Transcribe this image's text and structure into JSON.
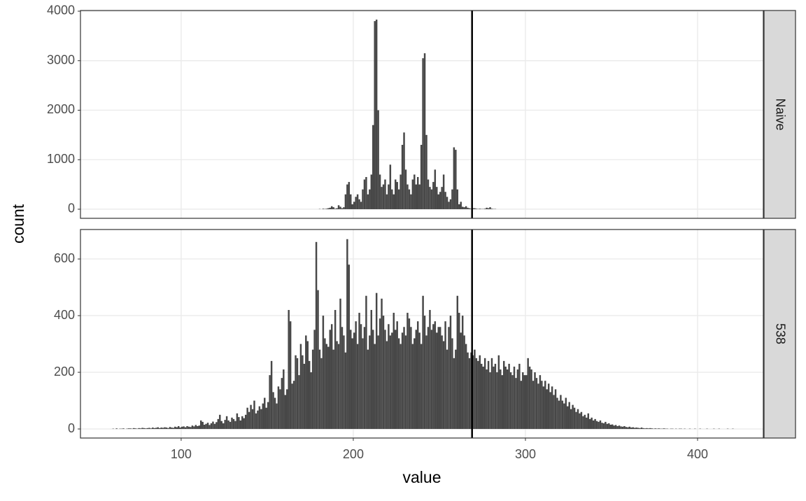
{
  "chart_data": [
    {
      "type": "histogram",
      "strip": "Naive",
      "y_label": "count",
      "color": "#474747",
      "grid": true,
      "vline": 269,
      "xlim": [
        41.5,
        438.2
      ],
      "xticks": [
        100,
        200,
        300,
        400
      ],
      "ylim": [
        -184,
        4014
      ],
      "yticks": [
        0,
        1000,
        2000,
        3000,
        4000
      ],
      "bins": [
        175,
        176,
        177,
        178,
        179,
        180,
        181,
        182,
        183,
        184,
        185,
        186,
        187,
        188,
        189,
        190,
        191,
        192,
        193,
        194,
        195,
        196,
        197,
        198,
        199,
        200,
        201,
        202,
        203,
        204,
        205,
        206,
        207,
        208,
        209,
        210,
        211,
        212,
        213,
        214,
        215,
        216,
        217,
        218,
        219,
        220,
        221,
        222,
        223,
        224,
        225,
        226,
        227,
        228,
        229,
        230,
        231,
        232,
        233,
        234,
        235,
        236,
        237,
        238,
        239,
        240,
        241,
        242,
        243,
        244,
        245,
        246,
        247,
        248,
        249,
        250,
        251,
        252,
        253,
        254,
        255,
        256,
        257,
        258,
        259,
        260,
        261,
        262,
        263,
        264,
        265,
        266,
        267,
        268,
        269,
        270,
        271,
        272,
        273,
        274,
        275,
        276,
        277,
        278,
        279,
        280,
        281,
        282,
        283,
        284,
        285,
        286,
        287,
        288,
        289,
        290
      ],
      "counts": [
        0,
        0,
        0,
        0,
        0,
        5,
        0,
        10,
        5,
        10,
        20,
        30,
        60,
        40,
        10,
        20,
        80,
        50,
        20,
        40,
        300,
        500,
        550,
        300,
        100,
        150,
        250,
        300,
        200,
        150,
        400,
        600,
        650,
        300,
        400,
        700,
        1700,
        3800,
        3830,
        2000,
        700,
        450,
        500,
        600,
        300,
        500,
        900,
        400,
        300,
        600,
        550,
        400,
        700,
        1300,
        1550,
        800,
        500,
        400,
        300,
        600,
        700,
        500,
        650,
        500,
        1300,
        3050,
        3150,
        1500,
        600,
        450,
        400,
        550,
        800,
        450,
        300,
        350,
        450,
        700,
        350,
        250,
        150,
        200,
        400,
        1250,
        1200,
        400,
        100,
        150,
        50,
        40,
        60,
        30,
        20,
        10,
        20,
        20,
        10,
        5,
        10,
        5,
        5,
        10,
        30,
        20,
        40,
        10,
        5,
        5,
        0,
        0,
        0,
        0,
        0,
        0,
        0
      ]
    },
    {
      "type": "histogram",
      "strip": "538",
      "x_label": "value",
      "color": "#474747",
      "grid": true,
      "vline": 269,
      "xlim": [
        41.5,
        438.2
      ],
      "xticks": [
        100,
        200,
        300,
        400
      ],
      "ylim": [
        -32,
        704
      ],
      "yticks": [
        0,
        200,
        400,
        600
      ],
      "bins": [
        60,
        61,
        62,
        63,
        64,
        65,
        66,
        67,
        68,
        69,
        70,
        71,
        72,
        73,
        74,
        75,
        76,
        77,
        78,
        79,
        80,
        81,
        82,
        83,
        84,
        85,
        86,
        87,
        88,
        89,
        90,
        91,
        92,
        93,
        94,
        95,
        96,
        97,
        98,
        99,
        100,
        101,
        102,
        103,
        104,
        105,
        106,
        107,
        108,
        109,
        110,
        111,
        112,
        113,
        114,
        115,
        116,
        117,
        118,
        119,
        120,
        121,
        122,
        123,
        124,
        125,
        126,
        127,
        128,
        129,
        130,
        131,
        132,
        133,
        134,
        135,
        136,
        137,
        138,
        139,
        140,
        141,
        142,
        143,
        144,
        145,
        146,
        147,
        148,
        149,
        150,
        151,
        152,
        153,
        154,
        155,
        156,
        157,
        158,
        159,
        160,
        161,
        162,
        163,
        164,
        165,
        166,
        167,
        168,
        169,
        170,
        171,
        172,
        173,
        174,
        175,
        176,
        177,
        178,
        179,
        180,
        181,
        182,
        183,
        184,
        185,
        186,
        187,
        188,
        189,
        190,
        191,
        192,
        193,
        194,
        195,
        196,
        197,
        198,
        199,
        200,
        201,
        202,
        203,
        204,
        205,
        206,
        207,
        208,
        209,
        210,
        211,
        212,
        213,
        214,
        215,
        216,
        217,
        218,
        219,
        220,
        221,
        222,
        223,
        224,
        225,
        226,
        227,
        228,
        229,
        230,
        231,
        232,
        233,
        234,
        235,
        236,
        237,
        238,
        239,
        240,
        241,
        242,
        243,
        244,
        245,
        246,
        247,
        248,
        249,
        250,
        251,
        252,
        253,
        254,
        255,
        256,
        257,
        258,
        259,
        260,
        261,
        262,
        263,
        264,
        265,
        266,
        267,
        268,
        269,
        270,
        271,
        272,
        273,
        274,
        275,
        276,
        277,
        278,
        279,
        280,
        281,
        282,
        283,
        284,
        285,
        286,
        287,
        288,
        289,
        290,
        291,
        292,
        293,
        294,
        295,
        296,
        297,
        298,
        299,
        300,
        301,
        302,
        303,
        304,
        305,
        306,
        307,
        308,
        309,
        310,
        311,
        312,
        313,
        314,
        315,
        316,
        317,
        318,
        319,
        320,
        321,
        322,
        323,
        324,
        325,
        326,
        327,
        328,
        329,
        330,
        331,
        332,
        333,
        334,
        335,
        336,
        337,
        338,
        339,
        340,
        341,
        342,
        343,
        344,
        345,
        346,
        347,
        348,
        349,
        350,
        351,
        352,
        353,
        354,
        355,
        356,
        357,
        358,
        359,
        360,
        361,
        362,
        363,
        364,
        365,
        366,
        367,
        368,
        369,
        370,
        371,
        372,
        373,
        374,
        375,
        376,
        377,
        378,
        379,
        380,
        381,
        382,
        383,
        384,
        385,
        386,
        387,
        388,
        389,
        390,
        391,
        392,
        393,
        394,
        395,
        396,
        397,
        398,
        399,
        400,
        401,
        402,
        403,
        404,
        405,
        406,
        407,
        408,
        409,
        410,
        411,
        412,
        413,
        414,
        415,
        416,
        417,
        418,
        419,
        420,
        421
      ],
      "counts": [
        1,
        0,
        2,
        0,
        1,
        1,
        2,
        0,
        1,
        2,
        2,
        1,
        3,
        2,
        1,
        3,
        2,
        4,
        3,
        2,
        3,
        4,
        2,
        5,
        3,
        4,
        6,
        3,
        5,
        4,
        6,
        5,
        3,
        7,
        5,
        4,
        8,
        6,
        10,
        5,
        8,
        9,
        6,
        10,
        8,
        7,
        12,
        9,
        14,
        10,
        12,
        30,
        25,
        15,
        18,
        22,
        14,
        20,
        26,
        18,
        24,
        35,
        50,
        28,
        20,
        32,
        45,
        30,
        25,
        40,
        35,
        28,
        55,
        42,
        30,
        45,
        38,
        50,
        75,
        60,
        85,
        70,
        100,
        55,
        65,
        80,
        70,
        90,
        110,
        75,
        95,
        190,
        240,
        130,
        110,
        90,
        150,
        140,
        180,
        210,
        120,
        140,
        420,
        380,
        160,
        170,
        260,
        250,
        190,
        300,
        260,
        230,
        330,
        310,
        240,
        200,
        280,
        350,
        660,
        490,
        280,
        250,
        400,
        320,
        300,
        290,
        350,
        370,
        280,
        420,
        310,
        300,
        460,
        360,
        330,
        270,
        670,
        580,
        350,
        320,
        340,
        380,
        300,
        410,
        370,
        320,
        360,
        470,
        280,
        330,
        420,
        350,
        300,
        480,
        330,
        390,
        460,
        400,
        350,
        310,
        370,
        330,
        340,
        410,
        350,
        380,
        320,
        300,
        340,
        360,
        330,
        410,
        390,
        360,
        300,
        320,
        350,
        380,
        340,
        300,
        470,
        400,
        330,
        360,
        420,
        350,
        370,
        380,
        340,
        360,
        360,
        330,
        310,
        380,
        280,
        360,
        400,
        320,
        250,
        280,
        470,
        410,
        340,
        400,
        330,
        300,
        270,
        250,
        270,
        260,
        280,
        250,
        240,
        260,
        230,
        220,
        250,
        210,
        240,
        200,
        250,
        220,
        230,
        200,
        260,
        210,
        190,
        240,
        220,
        210,
        230,
        200,
        190,
        220,
        180,
        210,
        230,
        170,
        200,
        190,
        190,
        250,
        220,
        210,
        170,
        200,
        180,
        160,
        190,
        170,
        150,
        170,
        140,
        160,
        130,
        150,
        120,
        140,
        110,
        100,
        120,
        100,
        90,
        110,
        80,
        95,
        70,
        85,
        75,
        60,
        70,
        55,
        60,
        45,
        50,
        40,
        55,
        35,
        40,
        30,
        35,
        28,
        25,
        30,
        22,
        20,
        25,
        18,
        20,
        15,
        16,
        12,
        14,
        10,
        12,
        9,
        8,
        10,
        7,
        6,
        8,
        5,
        6,
        4,
        5,
        4,
        3,
        5,
        3,
        2,
        3,
        2,
        3,
        2,
        1,
        2,
        1,
        2,
        1,
        1,
        2,
        1,
        1,
        0,
        1,
        1,
        0,
        1,
        0,
        1,
        1,
        0,
        1,
        0,
        0,
        1,
        0,
        0,
        1,
        0,
        0,
        1,
        0,
        0,
        0,
        1,
        0,
        0,
        0,
        1,
        0,
        0,
        1,
        0,
        0,
        0,
        0,
        1,
        0,
        0,
        1
      ]
    }
  ]
}
